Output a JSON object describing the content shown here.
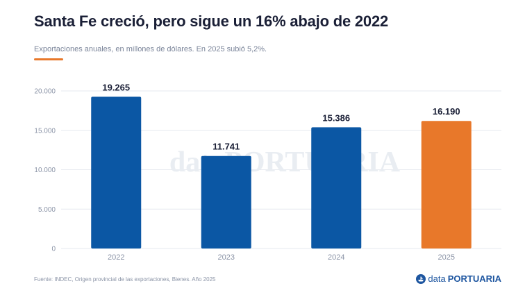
{
  "header": {
    "title": "Santa Fe creció, pero sigue un 16% abajo de 2022",
    "subtitle": "Exportaciones anuales, en millones de dólares. En 2025 subió 5,2%."
  },
  "colors": {
    "bar": "#0b57a4",
    "highlight": "#e8782a",
    "accent": "#e8782a",
    "grid": "#e6e9ef",
    "axis_text": "#8a93a6",
    "label_text": "#1a1f36",
    "watermark": "#e9edf2"
  },
  "chart_data": {
    "type": "bar",
    "categories": [
      "2022",
      "2023",
      "2024",
      "2025"
    ],
    "values": [
      19265,
      11741,
      15386,
      16190
    ],
    "value_labels": [
      "19.265",
      "11.741",
      "15.386",
      "16.190"
    ],
    "highlight_index": 3,
    "ylim": [
      0,
      20000
    ],
    "yticks": [
      0,
      5000,
      10000,
      15000,
      20000
    ],
    "ytick_labels": [
      "0",
      "5.000",
      "10.000",
      "15.000",
      "20.000"
    ],
    "grid": true,
    "xlabel": "",
    "ylabel": ""
  },
  "watermark": {
    "pre": "data",
    "post": "PORTUARIA"
  },
  "footer": {
    "source": "Fuente: INDEC, Origen provincial de las exportaciones, Bienes. Año 2025",
    "brand_pre": "data",
    "brand_post": "PORTUARIA",
    "brand_icon": "ship-icon"
  }
}
